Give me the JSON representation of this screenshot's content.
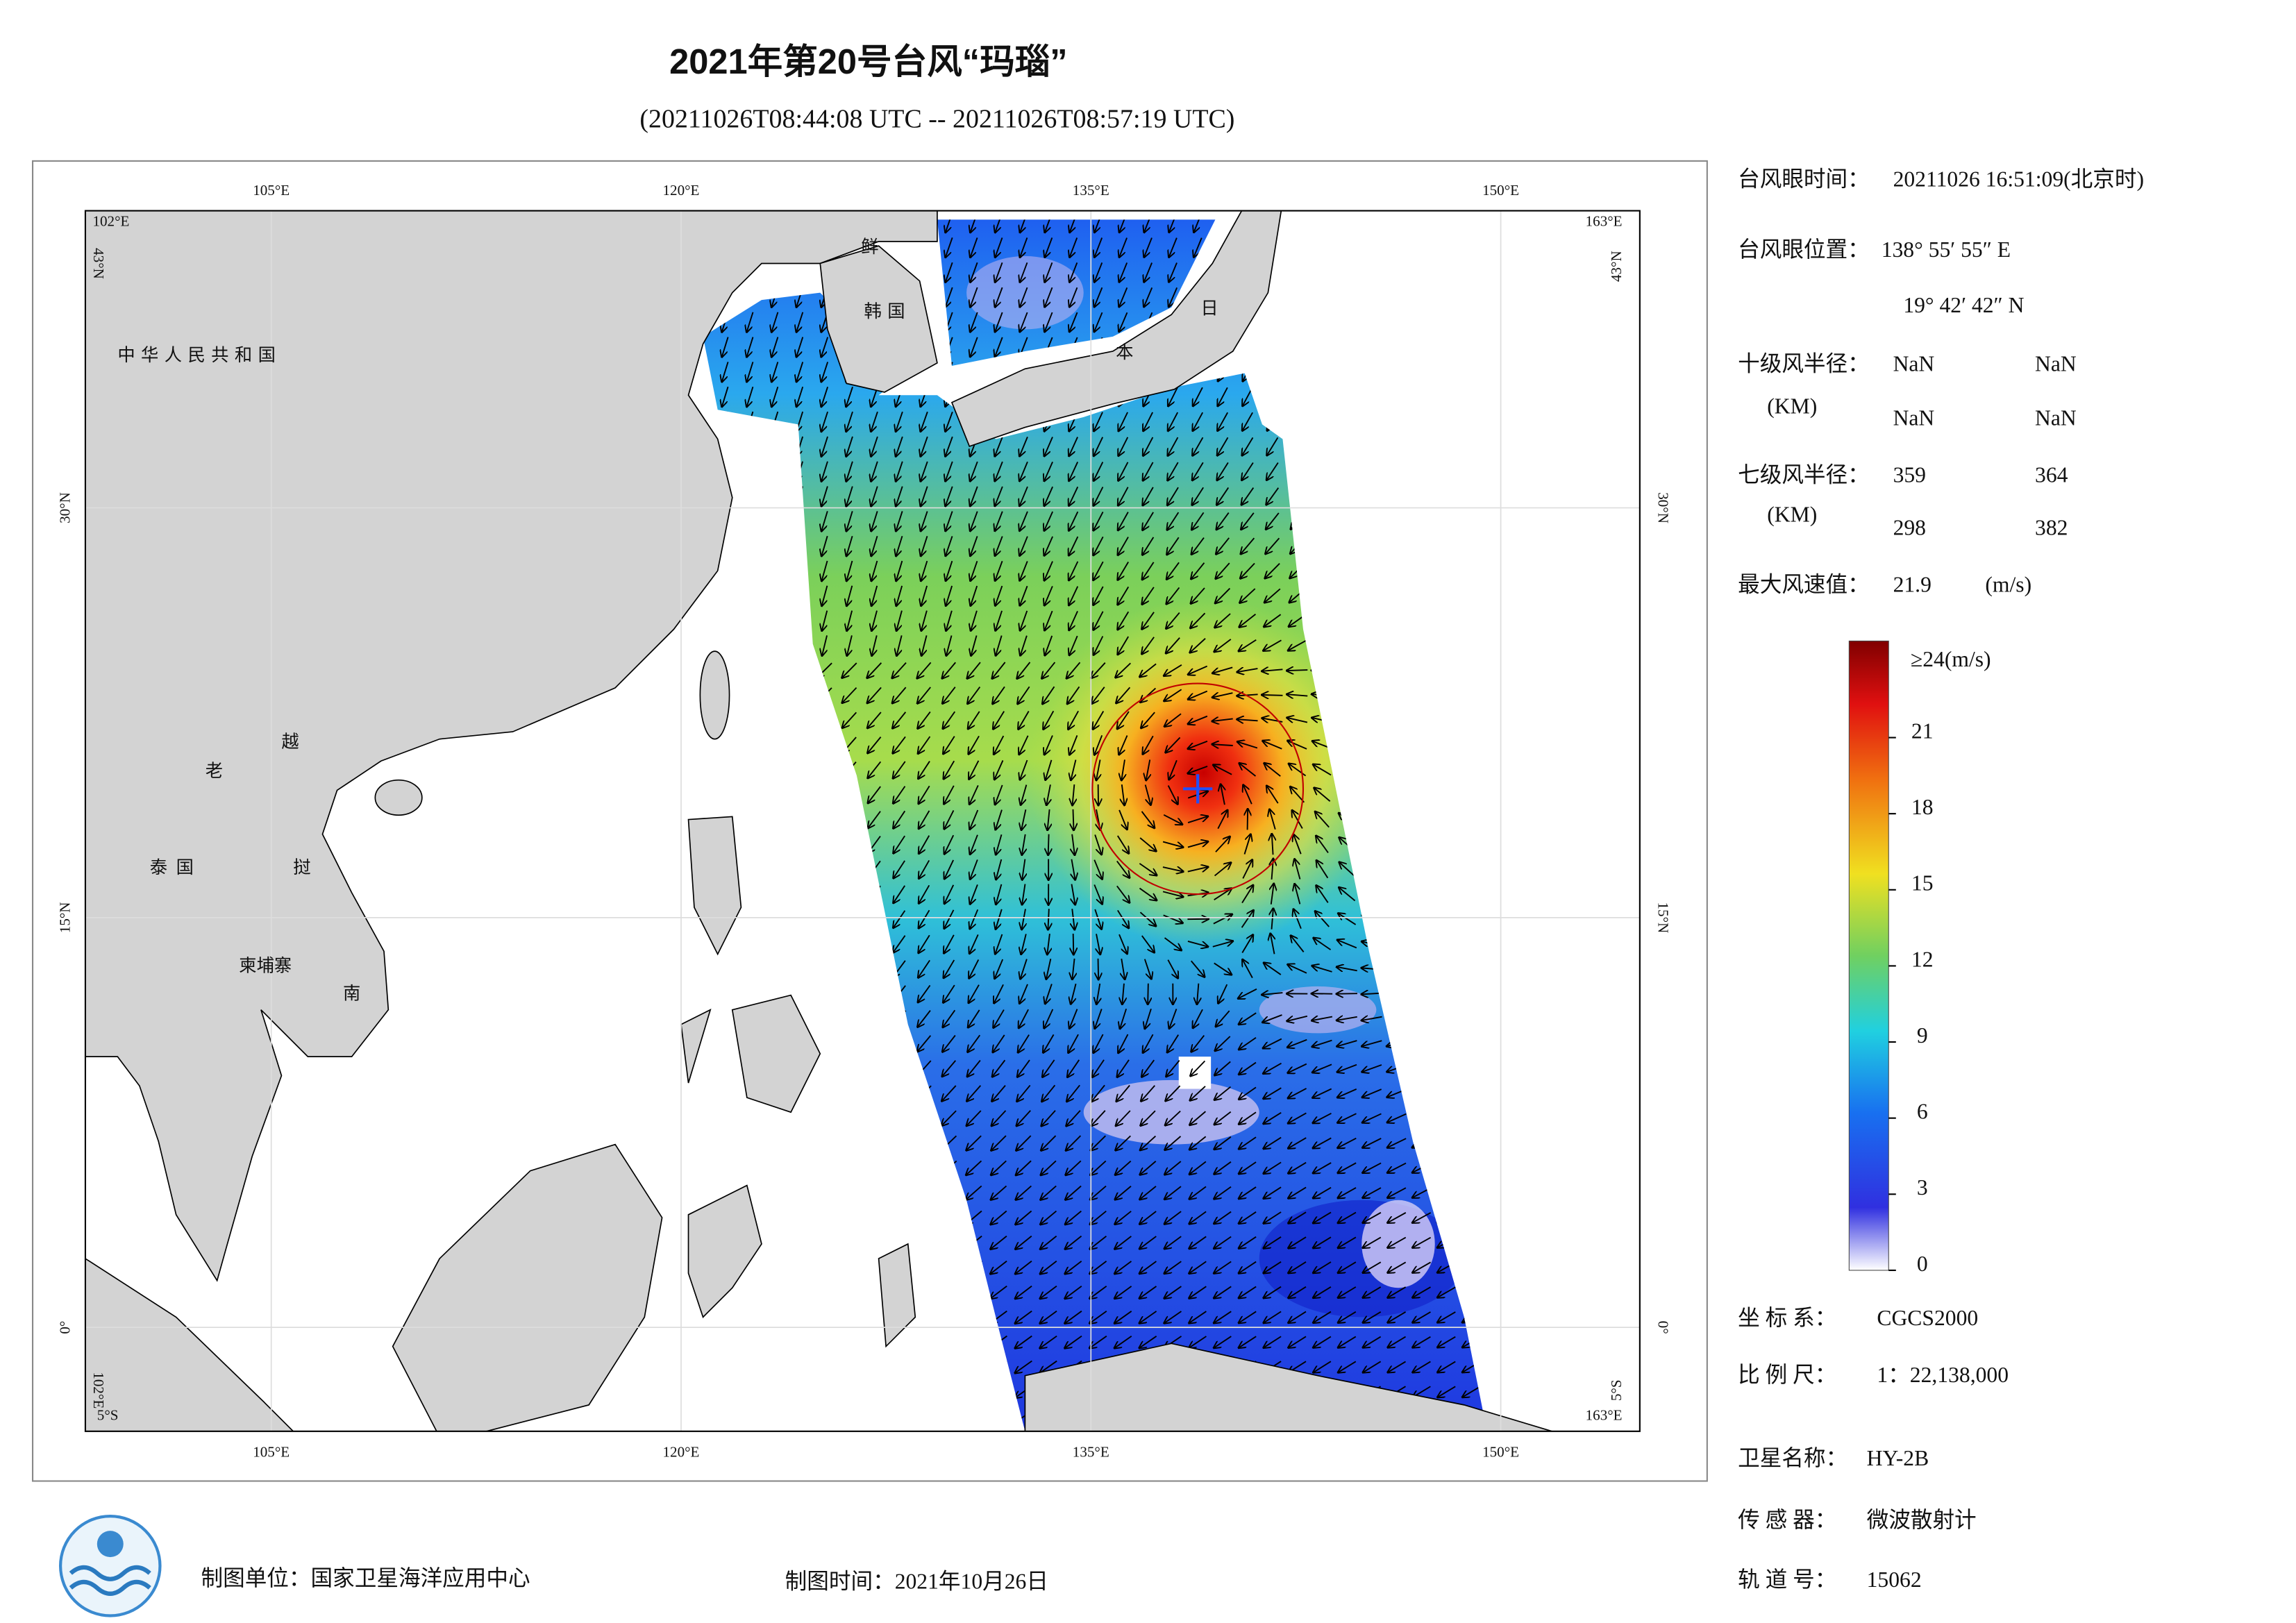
{
  "header": {
    "title": "2021年第20号台风“玛瑙”",
    "subtitle": "(20211026T08:44:08 UTC -- 20211026T08:57:19 UTC)"
  },
  "map": {
    "lon_ticks": [
      {
        "value": 105,
        "label": "105°E"
      },
      {
        "value": 120,
        "label": "120°E"
      },
      {
        "value": 135,
        "label": "135°E"
      },
      {
        "value": 150,
        "label": "150°E"
      }
    ],
    "lat_ticks": [
      {
        "value": 30,
        "label": "30°N"
      },
      {
        "value": 15,
        "label": "15°N"
      },
      {
        "value": 0,
        "label": "0°"
      }
    ],
    "corners": {
      "top_left": [
        "102°E",
        "43°N"
      ],
      "top_right": [
        "163°E",
        "43°N"
      ],
      "bottom_left": [
        "102°E",
        "5°S"
      ],
      "bottom_right": [
        "5°S",
        "163°E"
      ]
    },
    "places": [
      "中华人民共和国",
      "老",
      "越",
      "泰国",
      "挝",
      "柬埔寨",
      "南",
      "鲜",
      "韩国",
      "日",
      "本"
    ]
  },
  "info": {
    "eye_time": {
      "label": "台风眼时间：",
      "value": "20211026 16:51:09(北京时)"
    },
    "eye_position": {
      "label": "台风眼位置：",
      "lon": "138° 55′ 55″ E",
      "lat": "19° 42′ 42″ N"
    },
    "r10": {
      "label": "十级风半径：",
      "unit": "(KM)",
      "values": [
        "NaN",
        "NaN",
        "NaN",
        "NaN"
      ]
    },
    "r7": {
      "label": "七级风半径：",
      "unit": "(KM)",
      "values": [
        359,
        364,
        298,
        382
      ]
    },
    "max_wind": {
      "label": "最大风速值：",
      "value": 21.9,
      "unit": "(m/s)"
    },
    "crs": {
      "label": "坐 标 系：",
      "value": "CGCS2000"
    },
    "scale": {
      "label": "比 例 尺：",
      "value": "1：22,138,000"
    },
    "satellite": {
      "label": "卫星名称：",
      "value": "HY-2B"
    },
    "sensor": {
      "label": "传 感 器：",
      "value": "微波散射计"
    },
    "orbit": {
      "label": "轨 道 号：",
      "value": 15062
    }
  },
  "colorbar": {
    "range": [
      0,
      24
    ],
    "ticks": [
      0,
      3,
      6,
      9,
      12,
      15,
      18,
      21
    ],
    "top_label": "≥24(m/s)"
  },
  "footer": {
    "unit": "制图单位：国家卫星海洋应用中心",
    "date": "制图时间：2021年10月26日"
  }
}
